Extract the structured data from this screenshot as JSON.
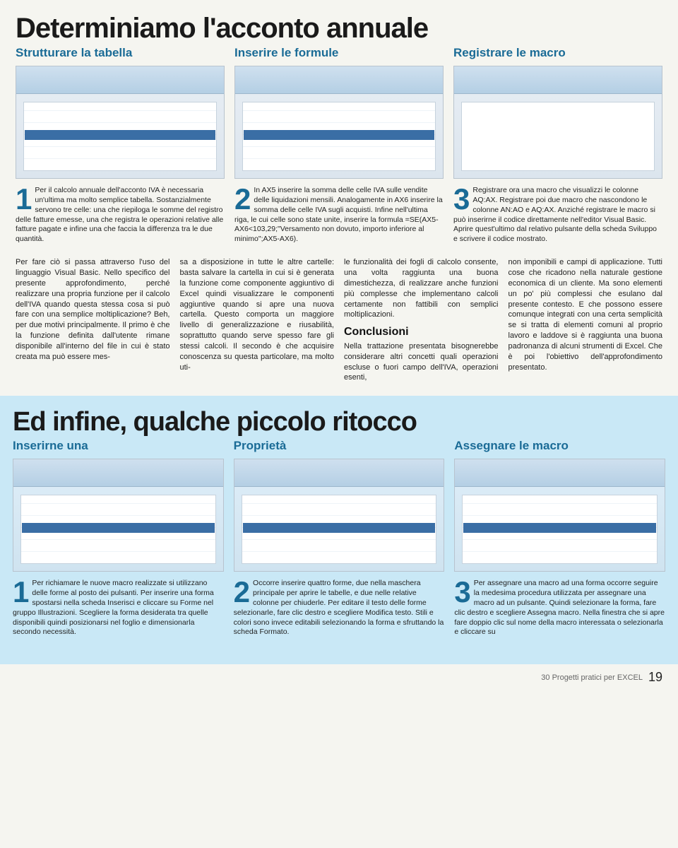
{
  "section1": {
    "title": "Determiniamo l'acconto annuale",
    "subheads": [
      "Strutturare la tabella",
      "Inserire le formule",
      "Registrare le macro"
    ],
    "steps": [
      {
        "num": "1",
        "text": "Per il calcolo annuale dell'acconto IVA è necessaria un'ultima ma molto semplice tabella. Sostanzialmente servono tre celle: una che riepiloga le somme del registro delle fatture emesse, una che registra le operazioni relative alle fatture pagate e infine una che faccia la differenza tra le due quantità."
      },
      {
        "num": "2",
        "text": "In AX5 inserire la somma delle celle IVA sulle vendite delle liquidazioni mensili. Analogamente in AX6 inserire la somma delle celle IVA sugli acquisti. Infine nell'ultima riga, le cui celle sono state unite, inserire la formula =SE(AX5-AX6<103,29;\"Versamento non dovuto, importo inferiore al minimo\";AX5-AX6)."
      },
      {
        "num": "3",
        "text": "Registrare ora una macro che visualizzi le colonne AQ:AX. Registrare poi due macro che nascondono le colonne AN:AO e AQ:AX. Anziché registrare le macro si può inserirne il codice direttamente nell'editor Visual Basic. Aprire quest'ultimo dal relativo pulsante della scheda Sviluppo e scrivere il codice mostrato."
      }
    ]
  },
  "body": {
    "col_text_1": "Per fare ciò si passa attraverso l'uso del linguaggio Visual Basic. Nello specifico del presente approfondimento, perché realizzare una propria funzione per il calcolo dell'IVA quando questa stessa cosa si può fare con una semplice moltiplicazione? Beh, per due motivi principalmente. Il primo è che la funzione definita dall'utente rimane disponibile all'interno del file in cui è stato creata ma può essere mes-",
    "col_text_2": "sa a disposizione in tutte le altre cartelle: basta salvare la cartella in cui si è generata la funzione come componente aggiuntivo di Excel quindi visualizzare le componenti aggiuntive quando si apre una nuova cartella. Questo comporta un maggiore livello di generalizzazione e riusabilità, soprattutto quando serve spesso fare gli stessi calcoli. Il secondo è che acquisire conoscenza su questa particolare, ma molto uti-",
    "col_text_3a": "le funzionalità dei fogli di calcolo consente, una volta raggiunta una buona dimestichezza, di realizzare anche funzioni più complesse che implementano calcoli certamente non fattibili con semplici moltiplicazioni.",
    "conclusioni_head": "Conclusioni",
    "col_text_3b": "Nella trattazione presentata bisognerebbe considerare altri concetti quali operazioni escluse o fuori campo dell'IVA, operazioni esenti,",
    "col_text_4": "non imponibili e campi di applicazione. Tutti cose che ricadono nella naturale gestione economica di un cliente. Ma sono elementi un po' più complessi che esulano dal presente contesto. E che possono essere comunque integrati con una certa semplicità se si tratta di elementi comuni al proprio lavoro e laddove si è raggiunta una buona padronanza di alcuni strumenti di Excel. Che è poi l'obiettivo dell'approfondimento presentato."
  },
  "section2": {
    "title": "Ed infine, qualche piccolo ritocco",
    "subheads": [
      "Inserirne una",
      "Proprietà",
      "Assegnare le macro"
    ],
    "steps": [
      {
        "num": "1",
        "text": "Per richiamare le nuove macro realizzate si utilizzano delle forme al posto dei pulsanti. Per inserire una forma spostarsi nella scheda Inserisci e cliccare su Forme nel gruppo Illustrazioni. Scegliere la forma desiderata tra quelle disponibili quindi posizionarsi nel foglio e dimensionarla secondo necessità."
      },
      {
        "num": "2",
        "text": "Occorre inserire quattro forme, due nella maschera principale per aprire le tabelle, e due nelle relative colonne per chiuderle. Per editare il testo delle forme selezionarle, fare clic destro e scegliere Modifica testo. Stili e colori sono invece editabili selezionando la forma e sfruttando la scheda Formato."
      },
      {
        "num": "3",
        "text": "Per assegnare una macro ad una forma occorre seguire la medesima procedura utilizzata per assegnare una macro ad un pulsante. Quindi selezionare la forma, fare clic destro e scegliere Assegna macro. Nella finestra che si apre fare doppio clic sul nome della macro interessata o selezionarla e cliccare su"
      }
    ]
  },
  "footer": {
    "tag": "30 Progetti pratici per EXCEL",
    "page": "19"
  }
}
